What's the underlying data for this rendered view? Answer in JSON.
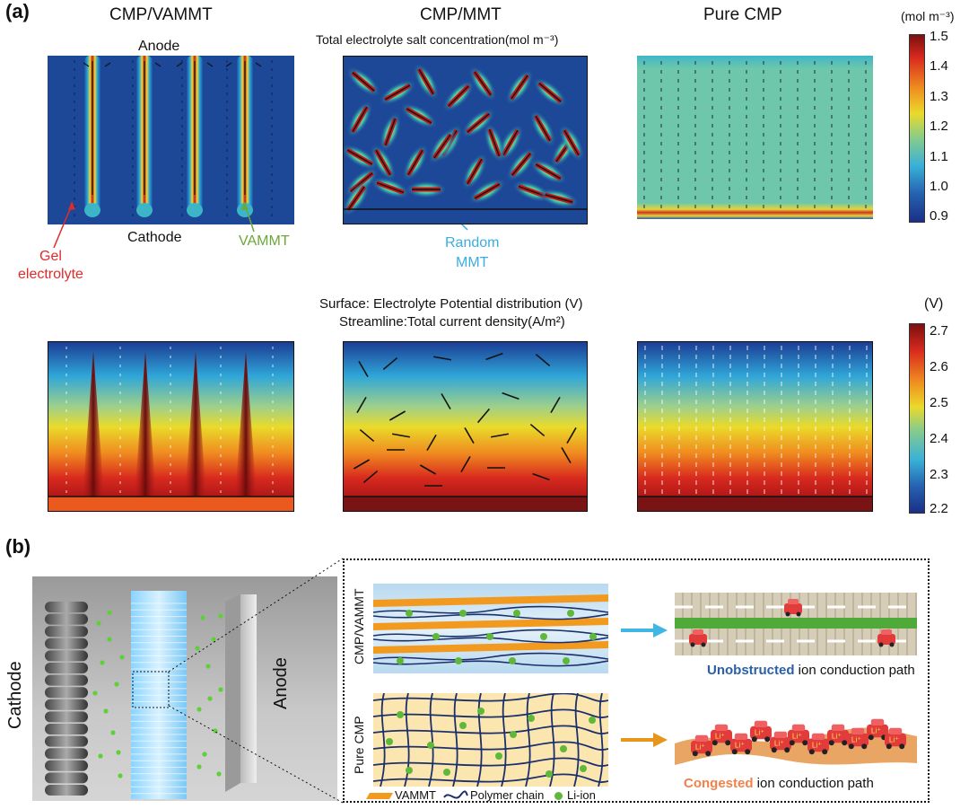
{
  "panel_a": {
    "label": "(a)",
    "column_titles": [
      "CMP/VAMMT",
      "CMP/MMT",
      "Pure CMP"
    ],
    "row1": {
      "title": "Total electrolyte salt concentration(mol m⁻³)",
      "anode_label": "Anode",
      "cathode_label": "Cathode",
      "gel_label": "Gel\nelectrolyte",
      "vammt_label": "VAMMT",
      "random_mmt_label": "Random\nMMT",
      "colorbar_unit": "(mol m⁻³)",
      "colorbar_ticks": [
        "1.5",
        "1.4",
        "1.3",
        "1.2",
        "1.1",
        "1.0",
        "0.9"
      ]
    },
    "row2": {
      "title_line1": "Surface: Electrolyte Potential distribution (V)",
      "title_line2": "Streamline:Total current density(A/m²)",
      "colorbar_unit": "(V)",
      "colorbar_ticks": [
        "2.7",
        "2.6",
        "2.5",
        "2.4",
        "2.3",
        "2.2"
      ]
    },
    "colors": {
      "low": "#1f3f94",
      "mid": "#f1d830",
      "high": "#b01818"
    }
  },
  "panel_b": {
    "label": "(b)",
    "cathode_label": "Cathode",
    "anode_label": "Anode",
    "row_label_top": "CMP/VAMMT",
    "row_label_bottom": "Pure CMP",
    "path_top_emph": "Unobstructed",
    "path_top_rest": " ion conduction path",
    "path_bottom_emph": "Congested",
    "path_bottom_rest": " ion conduction path",
    "legend": [
      "VAMMT",
      "Polymer chain",
      "Li-ion"
    ],
    "car_label": "Li⁺",
    "colors": {
      "vammt": "#f29a1f",
      "chain": "#1a2f6b",
      "li_ion": "#5fb83a",
      "arrow_top": "#3fb6e3",
      "arrow_bottom": "#e8961a",
      "unobstructed": "#2a5fa8",
      "congested": "#f2824a"
    }
  }
}
